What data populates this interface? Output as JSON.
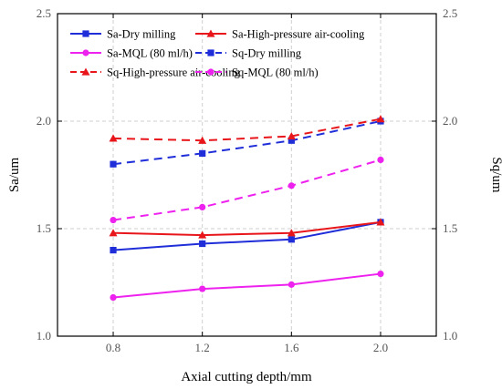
{
  "chart_data": {
    "type": "line",
    "title": "",
    "xlabel": "Axial cutting depth/mm",
    "ylabel_left": "Sa/um",
    "ylabel_right": "Sq/um",
    "x": [
      0.8,
      1.2,
      1.6,
      2.0
    ],
    "x_tick_labels": [
      "0.8",
      "1.2",
      "1.6",
      "2.0"
    ],
    "xlim": [
      0.55,
      2.25
    ],
    "ylim": [
      1.0,
      2.5
    ],
    "y_ticks": [
      1.0,
      1.5,
      2.0,
      2.5
    ],
    "y_tick_labels_left": [
      "1.0",
      "1.5",
      "2.0",
      "2.5"
    ],
    "y_tick_labels_right": [
      "1.0",
      "1.5",
      "2.0",
      "2.5"
    ],
    "grid": true,
    "legend_position": "top-left, inside, three rows",
    "series": [
      {
        "name": "Sa-Dry milling",
        "color": "#1f2ed8",
        "marker": "square",
        "line": "solid",
        "values": [
          1.4,
          1.43,
          1.45,
          1.53
        ]
      },
      {
        "name": "Sa-High-pressure air-cooling",
        "color": "#e8161b",
        "marker": "triangle",
        "line": "solid",
        "values": [
          1.48,
          1.47,
          1.48,
          1.53
        ]
      },
      {
        "name": "Sa-MQL (80 ml/h)",
        "color": "#ee22ee",
        "marker": "circle",
        "line": "solid",
        "values": [
          1.18,
          1.22,
          1.24,
          1.29
        ]
      },
      {
        "name": "Sq-Dry milling",
        "color": "#1f2ed8",
        "marker": "square",
        "line": "dashed",
        "values": [
          1.8,
          1.85,
          1.91,
          2.0
        ]
      },
      {
        "name": "Sq-High-pressure air-cooling",
        "color": "#e8161b",
        "marker": "triangle",
        "line": "dashed",
        "values": [
          1.92,
          1.91,
          1.93,
          2.01
        ]
      },
      {
        "name": "Sq-MQL (80 ml/h)",
        "color": "#ee22ee",
        "marker": "circle",
        "line": "dashed",
        "values": [
          1.54,
          1.6,
          1.7,
          1.82
        ]
      }
    ]
  }
}
